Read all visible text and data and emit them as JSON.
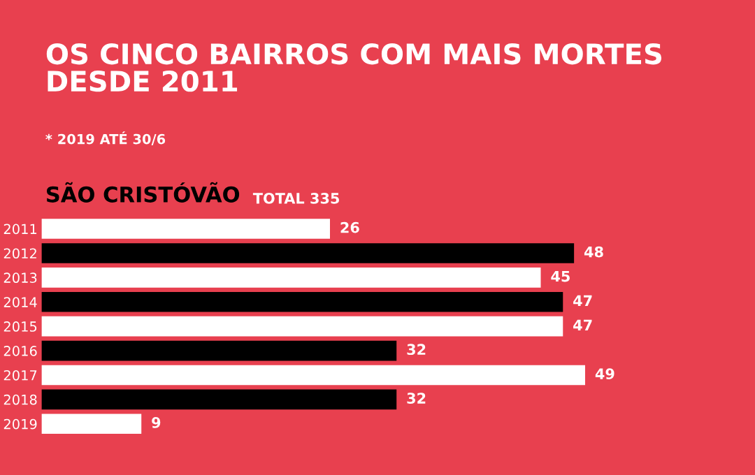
{
  "chart_data": {
    "type": "bar",
    "orientation": "horizontal",
    "title": "OS CINCO BAIRROS COM MAIS MORTES DESDE 2011",
    "subtitle": "* 2019 ATÉ 30/6",
    "annotations": [
      "SÃO CRISTÓVÃO",
      "TOTAL 335"
    ],
    "categories": [
      "2011",
      "2012",
      "2013",
      "2014",
      "2015",
      "2016",
      "2017",
      "2018",
      "2019"
    ],
    "values": [
      26,
      48,
      45,
      47,
      47,
      32,
      49,
      32,
      9
    ],
    "colors": [
      "#ffffff",
      "#000000",
      "#ffffff",
      "#000000",
      "#ffffff",
      "#000000",
      "#ffffff",
      "#000000",
      "#ffffff"
    ],
    "data_labels": true,
    "grid": false,
    "legend": false
  }
}
